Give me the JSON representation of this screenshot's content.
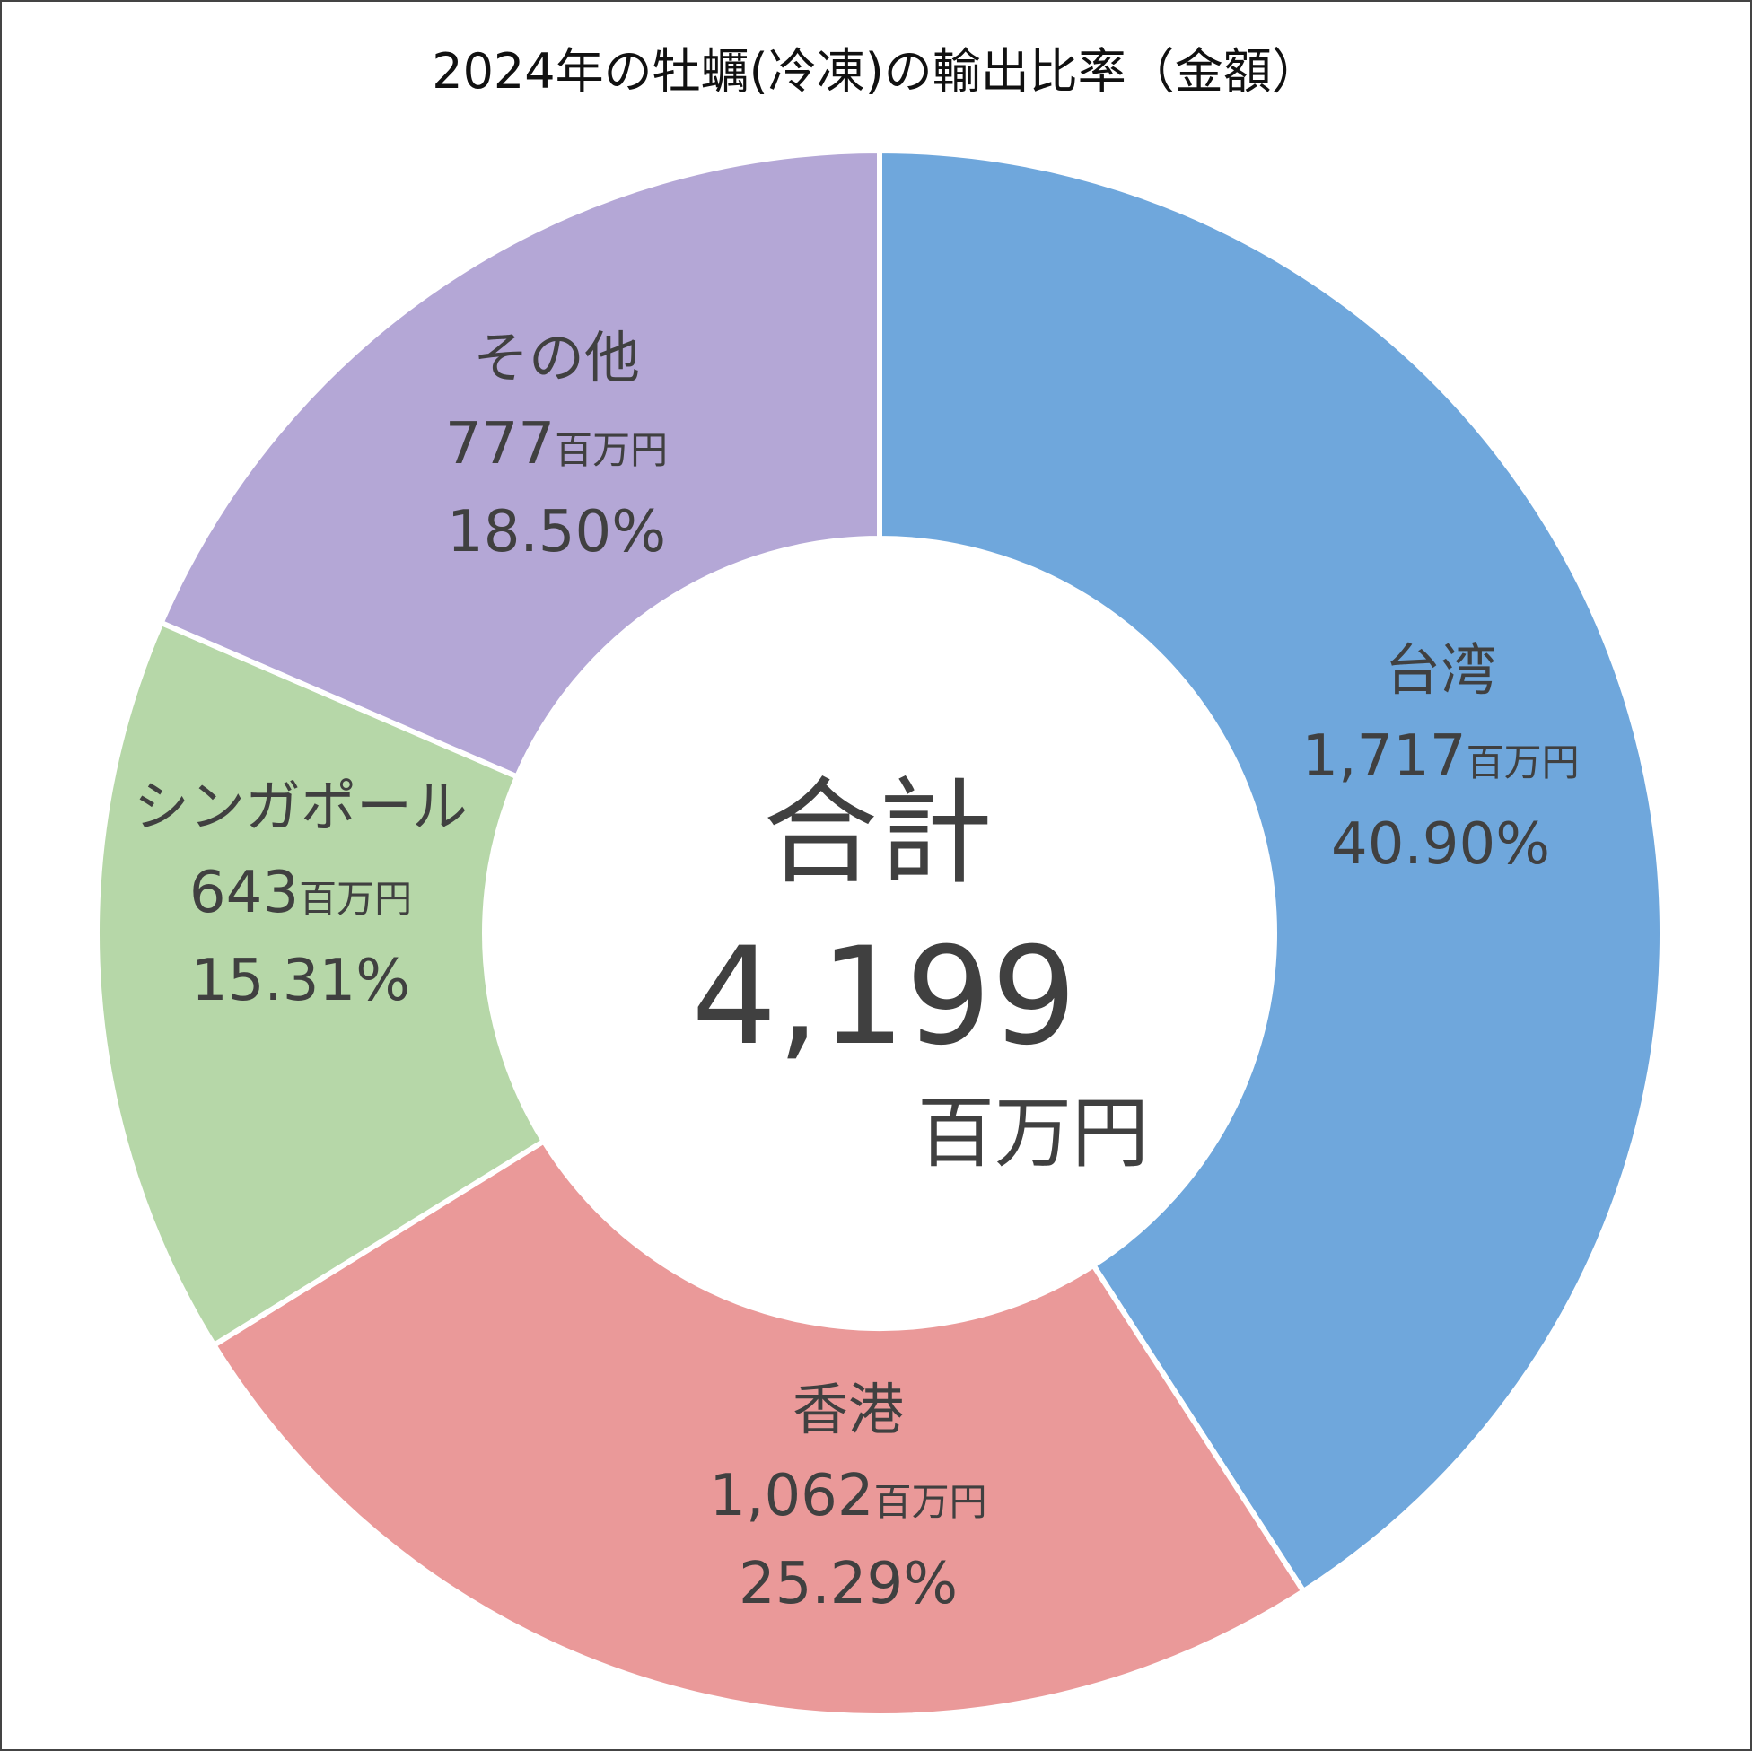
{
  "chart_data": {
    "type": "pie",
    "title": "2024年の牡蠣(冷凍)の輸出比率（金額）",
    "unit": "百万円",
    "center": {
      "heading": "合計",
      "value": "4,199",
      "unit": "百万円"
    },
    "slices": [
      {
        "name": "台湾",
        "value": 1717,
        "value_label": "1,717",
        "percent": 40.9,
        "percent_label": "40.90%",
        "color": "#6fa7dc"
      },
      {
        "name": "香港",
        "value": 1062,
        "value_label": "1,062",
        "percent": 25.29,
        "percent_label": "25.29%",
        "color": "#ea9999"
      },
      {
        "name": "シンガポール",
        "value": 643,
        "value_label": "643",
        "percent": 15.31,
        "percent_label": "15.31%",
        "color": "#b6d7a8"
      },
      {
        "name": "その他",
        "value": 777,
        "value_label": "777",
        "percent": 18.5,
        "percent_label": "18.50%",
        "color": "#b4a7d6"
      }
    ]
  }
}
